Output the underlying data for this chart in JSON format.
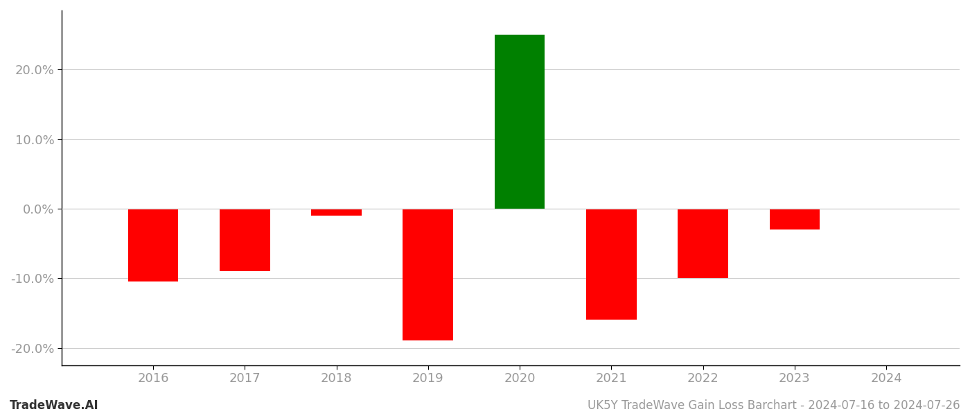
{
  "years": [
    2016,
    2017,
    2018,
    2019,
    2020,
    2021,
    2022,
    2023,
    2024
  ],
  "values": [
    -0.105,
    -0.09,
    -0.01,
    -0.19,
    0.25,
    -0.16,
    -0.1,
    -0.03,
    0.0
  ],
  "colors": [
    "#ff0000",
    "#ff0000",
    "#ff0000",
    "#ff0000",
    "#008000",
    "#ff0000",
    "#ff0000",
    "#ff0000",
    "#ff0000"
  ],
  "bar_width": 0.55,
  "ylim": [
    -0.225,
    0.285
  ],
  "yticks": [
    -0.2,
    -0.1,
    0.0,
    0.1,
    0.2
  ],
  "footer_left": "TradeWave.AI",
  "footer_right": "UK5Y TradeWave Gain Loss Barchart - 2024-07-16 to 2024-07-26",
  "background_color": "#ffffff",
  "grid_color": "#cccccc",
  "axis_label_color": "#999999",
  "tick_fontsize": 13,
  "footer_fontsize": 12
}
